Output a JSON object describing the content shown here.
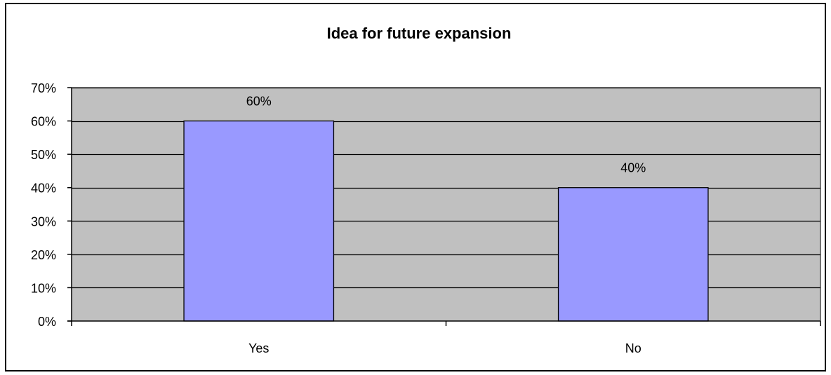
{
  "chart_data": {
    "type": "bar",
    "title": "Idea for future expansion",
    "categories": [
      "Yes",
      "No"
    ],
    "values": [
      60,
      40
    ],
    "data_labels": [
      "60%",
      "40%"
    ],
    "yticks": [
      0,
      10,
      20,
      30,
      40,
      50,
      60,
      70
    ],
    "ytick_labels": [
      "0%",
      "10%",
      "20%",
      "30%",
      "40%",
      "50%",
      "60%",
      "70%"
    ],
    "ylim": [
      0,
      70
    ],
    "xlabel": "",
    "ylabel": "",
    "grid": true,
    "legend": "none",
    "colors": {
      "plot_background": "#c0c0c0",
      "bar_fill": "#9999ff",
      "bar_stroke": "#000000",
      "gridline": "#000000",
      "frame": "#000000"
    }
  }
}
